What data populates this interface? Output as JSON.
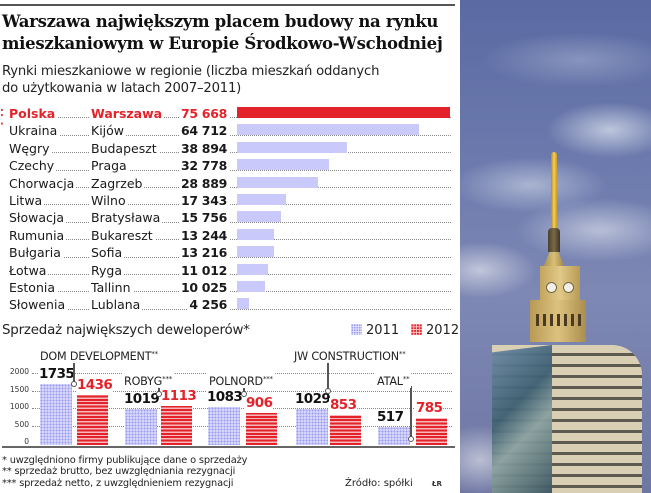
{
  "header": {
    "title_line1": "Warszawa największym placem budowy na rynku",
    "title_line2": "mieszkaniowym w Europie Środkowo-Wschodniej",
    "subtitle_line1": "Rynki mieszkaniowe w regionie (liczba mieszkań oddanych",
    "subtitle_line2": "do użytkowania w latach 2007–2011)"
  },
  "markets": {
    "highlight_marker": "⁚·",
    "rows": [
      {
        "country": "Polska",
        "city": "Warszawa",
        "value": "75 668",
        "num": 75668,
        "highlight": true
      },
      {
        "country": "Ukraina",
        "city": "Kijów",
        "value": "64 712",
        "num": 64712
      },
      {
        "country": "Węgry",
        "city": "Budapeszt",
        "value": "38 894",
        "num": 38894
      },
      {
        "country": "Czechy",
        "city": "Praga",
        "value": "32 778",
        "num": 32778
      },
      {
        "country": "Chorwacja",
        "city": "Zagrzeb",
        "value": "28 889",
        "num": 28889
      },
      {
        "country": "Litwa",
        "city": "Wilno",
        "value": "17 343",
        "num": 17343
      },
      {
        "country": "Słowacja",
        "city": "Bratysława",
        "value": "15 756",
        "num": 15756
      },
      {
        "country": "Rumunia",
        "city": "Bukareszt",
        "value": "13 244",
        "num": 13244
      },
      {
        "country": "Bułgaria",
        "city": "Sofia",
        "value": "13 216",
        "num": 13216
      },
      {
        "country": "Łotwa",
        "city": "Ryga",
        "value": "11 012",
        "num": 11012
      },
      {
        "country": "Estonia",
        "city": "Tallinn",
        "value": "10 025",
        "num": 10025
      },
      {
        "country": "Słowenia",
        "city": "Lublana",
        "value": "4 256",
        "num": 4256
      }
    ]
  },
  "developers": {
    "title": "Sprzedaż największych deweloperów*",
    "legend": {
      "y2011": "2011",
      "y2012": "2012"
    },
    "y_ticks": [
      "2000",
      "1500",
      "1000",
      "500",
      "0"
    ],
    "groups": [
      {
        "name": "DOM DEVELOPMENT",
        "mark": "**",
        "v2011": "1735",
        "v2012": "1436"
      },
      {
        "name": "ROBYG",
        "mark": "***",
        "v2011": "1019",
        "v2012": "1113"
      },
      {
        "name": "POLNORD",
        "mark": "***",
        "v2011": "1083",
        "v2012": "906"
      },
      {
        "name": "JW CONSTRUCTION",
        "mark": "**",
        "v2011": "1029",
        "v2012": "853"
      },
      {
        "name": "ATAL",
        "mark": "**",
        "v2011": "517",
        "v2012": "785"
      }
    ]
  },
  "footnotes": {
    "note1": "* uwzględniono firmy publikujące dane o sprzedaży",
    "note2": "** sprzedaż brutto, bez uwzględniania rezygnacji",
    "note3": "*** sprzedaż netto, z uwzględnieniem rezygnacji",
    "source": "Źródło: spółki",
    "credit": "ŁR"
  },
  "colors": {
    "highlight_red": "#e3222a",
    "bar_lavender": "#c9c9fb",
    "series_2011": "#9a9af0",
    "series_2012": "#e3222a"
  },
  "photo": {
    "subject": "Palace of Culture and Science spire behind modern office tower, cloudy sky"
  },
  "chart_data": [
    {
      "type": "bar",
      "orientation": "horizontal",
      "title": "Rynki mieszkaniowe w regionie (liczba mieszkań oddanych do użytkowania w latach 2007–2011)",
      "categories": [
        "Polska – Warszawa",
        "Ukraina – Kijów",
        "Węgry – Budapeszt",
        "Czechy – Praga",
        "Chorwacja – Zagrzeb",
        "Litwa – Wilno",
        "Słowacja – Bratysława",
        "Rumunia – Bukareszt",
        "Bułgaria – Sofia",
        "Łotwa – Ryga",
        "Estonia – Tallinn",
        "Słowenia – Lublana"
      ],
      "values": [
        75668,
        64712,
        38894,
        32778,
        28889,
        17343,
        15756,
        13244,
        13216,
        11012,
        10025,
        4256
      ],
      "xlabel": "",
      "ylabel": "",
      "highlight": "Polska – Warszawa"
    },
    {
      "type": "bar",
      "title": "Sprzedaż największych deweloperów*",
      "categories": [
        "DOM DEVELOPMENT**",
        "ROBYG***",
        "POLNORD***",
        "JW CONSTRUCTION**",
        "ATAL**"
      ],
      "series": [
        {
          "name": "2011",
          "values": [
            1735,
            1019,
            1083,
            1029,
            517
          ]
        },
        {
          "name": "2012",
          "values": [
            1436,
            1113,
            906,
            853,
            785
          ]
        }
      ],
      "ylim": [
        0,
        2000
      ],
      "yticks": [
        0,
        500,
        1000,
        1500,
        2000
      ],
      "legend_position": "top-right",
      "grid": true
    }
  ]
}
